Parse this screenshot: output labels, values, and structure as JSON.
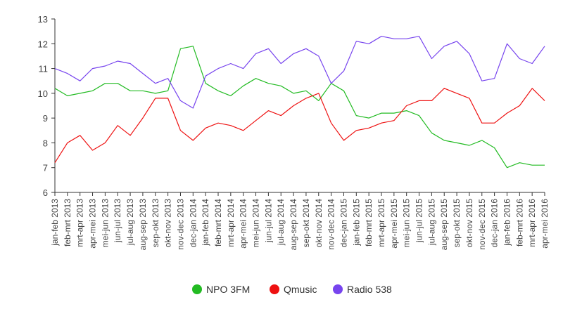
{
  "chart_data": {
    "type": "line",
    "title": "",
    "xlabel": "",
    "ylabel": "",
    "ylim": [
      6,
      13
    ],
    "yticks": [
      6,
      7,
      8,
      9,
      10,
      11,
      12,
      13
    ],
    "grid": false,
    "legend_position": "bottom",
    "categories": [
      "jan-feb 2013",
      "feb-mrt 2013",
      "mrt-apr 2013",
      "apr-mei 2013",
      "mei-jun 2013",
      "jun-jul 2013",
      "jul-aug 2013",
      "aug-sep 2013",
      "sep-okt 2013",
      "okt-nov 2013",
      "nov-dec 2013",
      "dec-jan 2014",
      "jan-feb 2014",
      "feb-mrt 2014",
      "mrt-apr 2014",
      "apr-mei 2014",
      "mei-jun 2014",
      "jun-jul 2014",
      "jul-aug 2014",
      "aug-sep 2014",
      "sep-okt 2014",
      "okt-nov 2014",
      "nov-dec 2014",
      "dec-jan 2015",
      "jan-feb 2015",
      "feb-mrt 2015",
      "mrt-apr 2015",
      "apr-mei 2015",
      "mei-jun 2015",
      "jun-jul 2015",
      "jul-aug 2015",
      "aug-sep 2015",
      "sep-okt 2015",
      "okt-nov 2015",
      "nov-dec 2015",
      "dec-jan 2016",
      "jan-feb 2016",
      "feb-mrt 2016",
      "mrt-apr 2016",
      "apr-mei 2016"
    ],
    "series": [
      {
        "name": "NPO 3FM",
        "color": "#22bb22",
        "values": [
          10.2,
          9.9,
          10.0,
          10.1,
          10.4,
          10.4,
          10.1,
          10.1,
          10.0,
          10.1,
          11.8,
          11.9,
          10.4,
          10.1,
          9.9,
          10.3,
          10.6,
          10.4,
          10.3,
          10.0,
          10.1,
          9.7,
          10.4,
          10.1,
          9.1,
          9.0,
          9.2,
          9.2,
          9.3,
          9.1,
          8.4,
          8.1,
          8.0,
          7.9,
          8.1,
          7.8,
          7.0,
          7.2,
          7.1,
          7.1
        ]
      },
      {
        "name": "Qmusic",
        "color": "#ee1111",
        "values": [
          7.2,
          8.0,
          8.3,
          7.7,
          8.0,
          8.7,
          8.3,
          9.0,
          9.8,
          9.8,
          8.5,
          8.1,
          8.6,
          8.8,
          8.7,
          8.5,
          8.9,
          9.3,
          9.1,
          9.5,
          9.8,
          10.0,
          8.8,
          8.1,
          8.5,
          8.6,
          8.8,
          8.9,
          9.5,
          9.7,
          9.7,
          10.2,
          10.0,
          9.8,
          8.8,
          8.8,
          9.2,
          9.5,
          10.2,
          9.7
        ]
      },
      {
        "name": "Radio 538",
        "color": "#7744ee",
        "values": [
          11.0,
          10.8,
          10.5,
          11.0,
          11.1,
          11.3,
          11.2,
          10.8,
          10.4,
          10.6,
          9.7,
          9.4,
          10.7,
          11.0,
          11.2,
          11.0,
          11.6,
          11.8,
          11.2,
          11.6,
          11.8,
          11.5,
          10.4,
          10.9,
          12.1,
          12.0,
          12.3,
          12.2,
          12.2,
          12.3,
          11.4,
          11.9,
          12.1,
          11.6,
          10.5,
          10.6,
          12.0,
          11.4,
          11.2,
          11.9
        ]
      }
    ]
  }
}
